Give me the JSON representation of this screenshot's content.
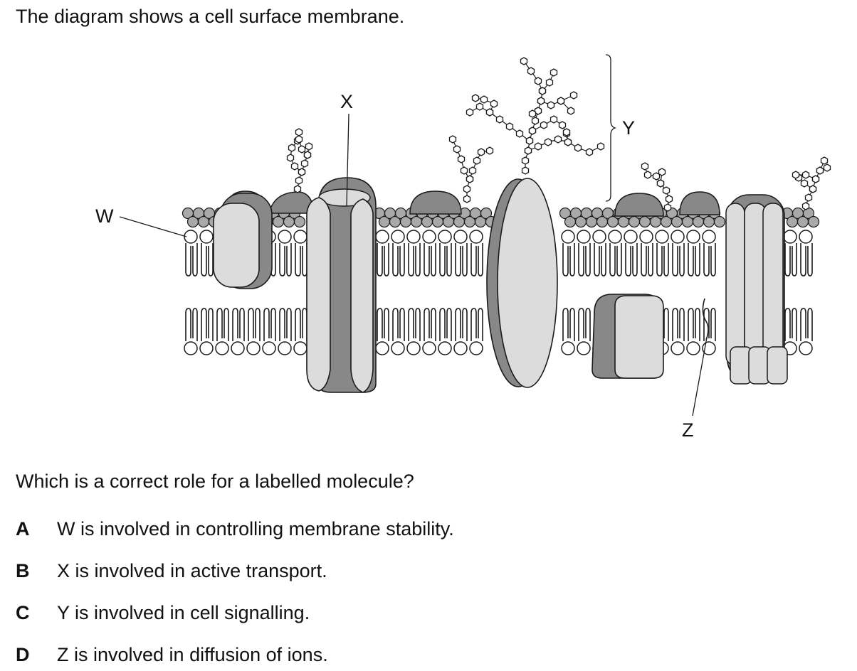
{
  "intro": "The diagram shows a cell surface membrane.",
  "diagram": {
    "labels": {
      "w": "W",
      "x": "X",
      "y": "Y",
      "z": "Z"
    },
    "colors": {
      "protein_dark": "#888888",
      "protein_light": "#dcdcdc",
      "head_dark": "#a9a9a9",
      "outline": "#1a1a1a"
    }
  },
  "question": "Which is a correct role for a labelled molecule?",
  "options": [
    {
      "letter": "A",
      "text": "W is involved in controlling membrane stability."
    },
    {
      "letter": "B",
      "text": "X is involved in active transport."
    },
    {
      "letter": "C",
      "text": "Y is involved in cell signalling."
    },
    {
      "letter": "D",
      "text": "Z is involved in diffusion of ions."
    }
  ]
}
